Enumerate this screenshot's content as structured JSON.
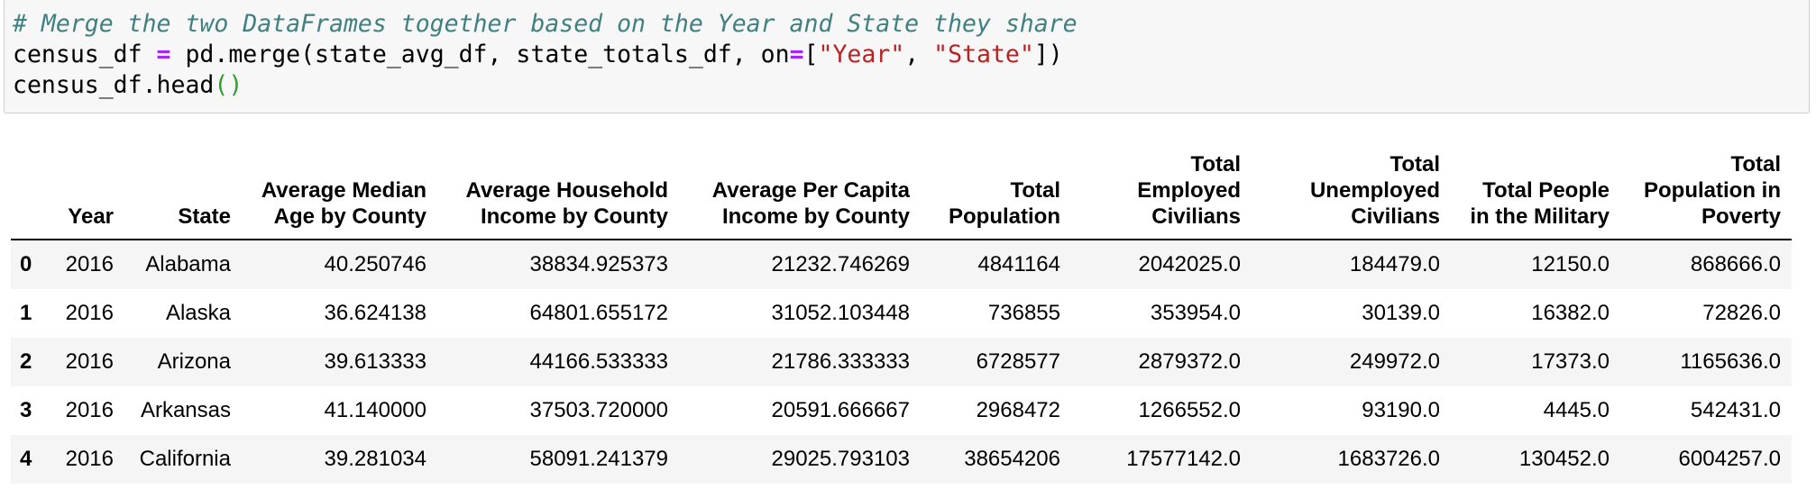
{
  "code": {
    "comment": "# Merge the two DataFrames together based on the Year and State they share",
    "line2": {
      "var": "census_df ",
      "eq": "=",
      "call": " pd.merge(state_avg_df, state_totals_df, on",
      "eq2": "=",
      "open": "[",
      "str1": "\"Year\"",
      "sep": ", ",
      "str2": "\"State\"",
      "close": "])"
    },
    "line3": {
      "call": "census_df.head",
      "parens": "()"
    }
  },
  "table": {
    "columns": [
      "",
      "Year",
      "State",
      "Average Median Age by County",
      "Average Household Income by County",
      "Average Per Capita Income by County",
      "Total Population",
      "Total Employed Civilians",
      "Total Unemployed Civilians",
      "Total People in the Military",
      "Total Population in Poverty"
    ],
    "rows": [
      [
        "0",
        "2016",
        "Alabama",
        "40.250746",
        "38834.925373",
        "21232.746269",
        "4841164",
        "2042025.0",
        "184479.0",
        "12150.0",
        "868666.0"
      ],
      [
        "1",
        "2016",
        "Alaska",
        "36.624138",
        "64801.655172",
        "31052.103448",
        "736855",
        "353954.0",
        "30139.0",
        "16382.0",
        "72826.0"
      ],
      [
        "2",
        "2016",
        "Arizona",
        "39.613333",
        "44166.533333",
        "21786.333333",
        "6728577",
        "2879372.0",
        "249972.0",
        "17373.0",
        "1165636.0"
      ],
      [
        "3",
        "2016",
        "Arkansas",
        "41.140000",
        "37503.720000",
        "20591.666667",
        "2968472",
        "1266552.0",
        "93190.0",
        "4445.0",
        "542431.0"
      ],
      [
        "4",
        "2016",
        "California",
        "39.281034",
        "58091.241379",
        "29025.793103",
        "38654206",
        "17577142.0",
        "1683726.0",
        "130452.0",
        "6004257.0"
      ]
    ]
  }
}
